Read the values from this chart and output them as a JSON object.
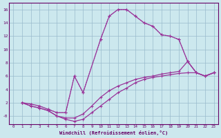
{
  "xlabel": "Windchill (Refroidissement éolien,°C)",
  "background_color": "#cce8ee",
  "line_color": "#993399",
  "xlim": [
    -0.5,
    23.5
  ],
  "ylim": [
    -1.2,
    17.0
  ],
  "xticks": [
    0,
    1,
    2,
    3,
    4,
    5,
    6,
    7,
    8,
    9,
    10,
    11,
    12,
    13,
    14,
    15,
    16,
    17,
    18,
    19,
    20,
    21,
    22,
    23
  ],
  "yticks": [
    0,
    2,
    4,
    6,
    8,
    10,
    12,
    14,
    16
  ],
  "ytick_labels": [
    "-0",
    "2",
    "4",
    "6",
    "8",
    "10",
    "12",
    "14",
    "16"
  ],
  "font_color": "#660066",
  "grid_color": "#99bbcc",
  "curve1_x": [
    1,
    2,
    3,
    4,
    5,
    6,
    7,
    8,
    10,
    11,
    12,
    13,
    14,
    15,
    16,
    17,
    18,
    19,
    20,
    21,
    22,
    23
  ],
  "curve1_y": [
    2,
    1.8,
    1.5,
    1.0,
    0.5,
    0.5,
    6.0,
    3.5,
    11.5,
    15.0,
    16.0,
    16.0,
    15.0,
    14.0,
    13.5,
    12.2,
    12.0,
    11.5,
    8.2,
    6.5,
    6.0,
    6.5
  ],
  "curve1_style": "dotted",
  "curve2_x": [
    1,
    2,
    3,
    4,
    5,
    6,
    7,
    8,
    10,
    11,
    12,
    13,
    14,
    15,
    16,
    17,
    18,
    19,
    20,
    21,
    22,
    23
  ],
  "curve2_y": [
    2.0,
    1.8,
    1.5,
    1.0,
    0.5,
    0.5,
    6.0,
    3.5,
    11.5,
    15.0,
    16.0,
    16.0,
    15.0,
    14.0,
    13.5,
    12.2,
    12.0,
    11.5,
    8.2,
    6.5,
    6.0,
    6.5
  ],
  "curve2_style": "solid",
  "curve3_x": [
    1,
    2,
    3,
    4,
    5,
    6,
    7,
    8,
    9,
    10,
    11,
    12,
    13,
    14,
    15,
    16,
    17,
    18,
    19,
    20,
    21,
    22,
    23
  ],
  "curve3_y": [
    2.0,
    1.5,
    1.2,
    0.8,
    0.0,
    -0.3,
    -0.3,
    0.3,
    1.5,
    2.8,
    3.8,
    4.5,
    5.0,
    5.5,
    5.8,
    6.0,
    6.3,
    6.5,
    6.7,
    8.2,
    6.5,
    6.0,
    6.5
  ],
  "curve3_style": "solid",
  "curve4_x": [
    1,
    2,
    3,
    4,
    5,
    6,
    7,
    8,
    9,
    10,
    11,
    12,
    13,
    14,
    15,
    16,
    17,
    18,
    19,
    20,
    21,
    22,
    23
  ],
  "curve4_y": [
    2.0,
    1.5,
    1.2,
    0.8,
    0.0,
    -0.5,
    -0.8,
    -0.5,
    0.5,
    1.5,
    2.5,
    3.5,
    4.2,
    5.0,
    5.5,
    5.8,
    6.0,
    6.2,
    6.4,
    6.5,
    6.5,
    6.0,
    6.5
  ],
  "curve4_style": "solid"
}
